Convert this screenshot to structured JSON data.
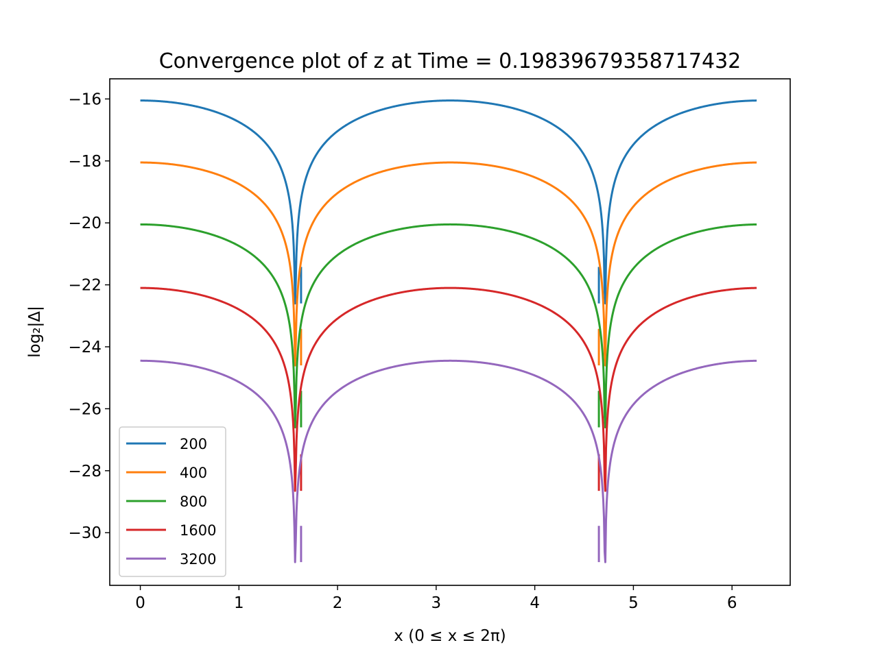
{
  "chart_data": {
    "type": "line",
    "title": "Convergence plot of z at Time = 0.19839679358717432",
    "xlabel": "x (0 ≤ x ≤ 2π)",
    "ylabel": "log₂|Δ|",
    "xlim": [
      -0.31,
      6.59
    ],
    "ylim": [
      -31.7,
      -15.35
    ],
    "xticks": [
      0,
      1,
      2,
      3,
      4,
      5,
      6
    ],
    "yticks": [
      -16,
      -18,
      -20,
      -22,
      -24,
      -26,
      -28,
      -30
    ],
    "xtick_labels": [
      "0",
      "1",
      "2",
      "3",
      "4",
      "5",
      "6"
    ],
    "ytick_labels": [
      "−16",
      "−18",
      "−20",
      "−22",
      "−24",
      "−26",
      "−28",
      "−30"
    ],
    "grid": false,
    "legend_position": "lower-left",
    "x_range": [
      0,
      6.25
    ],
    "dip_x": [
      1.63,
      4.65
    ],
    "series": [
      {
        "name": "200",
        "color": "#1f77b4",
        "x": [
          0,
          1.0,
          1.4,
          1.63,
          1.9,
          3.14,
          4.4,
          4.65,
          4.9,
          6.25
        ],
        "values": [
          -16.05,
          -16.9,
          -18.5,
          -22.6,
          -18.4,
          -16.15,
          -18.4,
          -22.6,
          -18.5,
          -16.05
        ]
      },
      {
        "name": "400",
        "color": "#ff7f0e",
        "x": [
          0,
          1.0,
          1.4,
          1.63,
          1.9,
          3.14,
          4.4,
          4.65,
          4.9,
          6.25
        ],
        "values": [
          -18.05,
          -18.9,
          -20.5,
          -24.6,
          -20.4,
          -18.15,
          -20.4,
          -24.6,
          -20.5,
          -18.05
        ]
      },
      {
        "name": "800",
        "color": "#2ca02c",
        "x": [
          0,
          1.0,
          1.4,
          1.63,
          1.9,
          3.14,
          4.4,
          4.65,
          4.9,
          6.25
        ],
        "values": [
          -20.05,
          -20.9,
          -22.5,
          -26.6,
          -22.4,
          -20.15,
          -22.4,
          -26.6,
          -22.5,
          -20.05
        ]
      },
      {
        "name": "1600",
        "color": "#d62728",
        "x": [
          0,
          1.0,
          1.4,
          1.63,
          1.9,
          3.14,
          4.4,
          4.65,
          4.9,
          6.25
        ],
        "values": [
          -22.1,
          -22.95,
          -24.6,
          -28.65,
          -24.5,
          -22.2,
          -24.5,
          -28.65,
          -24.6,
          -22.1
        ]
      },
      {
        "name": "3200",
        "color": "#9467bd",
        "x": [
          0,
          1.0,
          1.4,
          1.63,
          1.9,
          3.14,
          4.4,
          4.65,
          4.9,
          6.25
        ],
        "values": [
          -24.45,
          -25.3,
          -26.95,
          -30.95,
          -26.85,
          -24.55,
          -26.85,
          -30.95,
          -26.95,
          -24.45
        ]
      }
    ]
  }
}
